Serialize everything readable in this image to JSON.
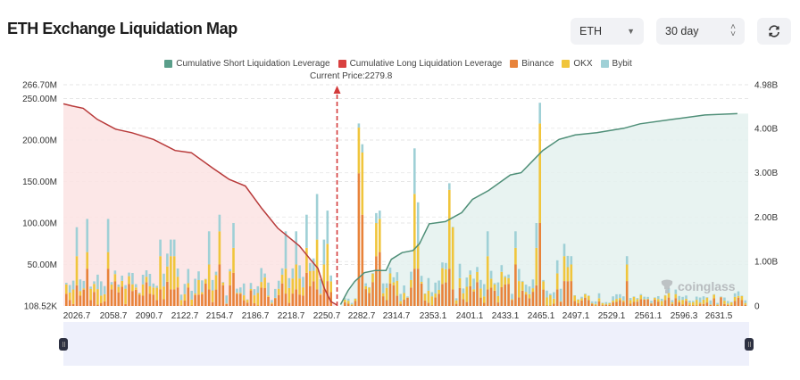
{
  "header": {
    "title": "ETH Exchange Liquidation Map",
    "symbol_select": "ETH",
    "range_select": "30 day",
    "refresh_icon": "refresh-icon"
  },
  "legend": [
    {
      "label": "Cumulative Short Liquidation Leverage",
      "color": "#5a9e8a"
    },
    {
      "label": "Cumulative Long Liquidation Leverage",
      "color": "#d9403f"
    },
    {
      "label": "Binance",
      "color": "#e8833a"
    },
    {
      "label": "OKX",
      "color": "#f0c53c"
    },
    {
      "label": "Bybit",
      "color": "#9fd0d6"
    }
  ],
  "current_price_label": "Current Price:2279.8",
  "watermark": "coinglass",
  "chart_data": {
    "type": "bar",
    "title": "ETH Exchange Liquidation Map",
    "current_price": 2279.8,
    "left_axis": {
      "ticks": [
        "108.52K",
        "50.00M",
        "100.00M",
        "150.00M",
        "200.00M",
        "250.00M",
        "266.70M"
      ],
      "range_m": [
        0,
        266.7
      ]
    },
    "right_axis": {
      "ticks": [
        "0",
        "1.00B",
        "2.00B",
        "3.00B",
        "4.00B",
        "4.98B"
      ],
      "range_b": [
        0,
        4.98
      ]
    },
    "x_tick_labels": [
      "2026.7",
      "2058.7",
      "2090.7",
      "2122.7",
      "2154.7",
      "2186.7",
      "2218.7",
      "2250.7",
      "2282.7",
      "2314.7",
      "2353.1",
      "2401.1",
      "2433.1",
      "2465.1",
      "2497.1",
      "2529.1",
      "2561.1",
      "2596.3",
      "2631.5"
    ],
    "x_range": [
      2026.7,
      2660
    ],
    "cumulative_long_b": [
      [
        2026.7,
        4.55
      ],
      [
        2035,
        4.5
      ],
      [
        2045,
        4.45
      ],
      [
        2058,
        4.2
      ],
      [
        2075,
        3.98
      ],
      [
        2090,
        3.9
      ],
      [
        2110,
        3.75
      ],
      [
        2130,
        3.5
      ],
      [
        2145,
        3.45
      ],
      [
        2165,
        3.1
      ],
      [
        2180,
        2.85
      ],
      [
        2195,
        2.7
      ],
      [
        2210,
        2.2
      ],
      [
        2225,
        1.75
      ],
      [
        2235,
        1.55
      ],
      [
        2245,
        1.35
      ],
      [
        2255,
        1.05
      ],
      [
        2262,
        0.85
      ],
      [
        2268,
        0.4
      ],
      [
        2274,
        0.1
      ],
      [
        2279.8,
        0.02
      ]
    ],
    "cumulative_short_b": [
      [
        2283,
        0.03
      ],
      [
        2290,
        0.35
      ],
      [
        2296,
        0.55
      ],
      [
        2305,
        0.75
      ],
      [
        2315,
        0.8
      ],
      [
        2325,
        0.8
      ],
      [
        2330,
        1.05
      ],
      [
        2340,
        1.2
      ],
      [
        2350,
        1.25
      ],
      [
        2356,
        1.4
      ],
      [
        2365,
        1.85
      ],
      [
        2380,
        1.9
      ],
      [
        2395,
        2.1
      ],
      [
        2405,
        2.4
      ],
      [
        2420,
        2.6
      ],
      [
        2440,
        2.95
      ],
      [
        2450,
        3.0
      ],
      [
        2462,
        3.3
      ],
      [
        2470,
        3.5
      ],
      [
        2485,
        3.75
      ],
      [
        2500,
        3.85
      ],
      [
        2520,
        3.9
      ],
      [
        2545,
        4.0
      ],
      [
        2560,
        4.1
      ],
      [
        2590,
        4.2
      ],
      [
        2620,
        4.3
      ],
      [
        2650,
        4.33
      ]
    ],
    "bars_m": {
      "note": "stacked per price bucket: [binance, okx, bybit] in millions (approximate)",
      "series": [
        "Binance",
        "OKX",
        "Bybit"
      ]
    }
  }
}
